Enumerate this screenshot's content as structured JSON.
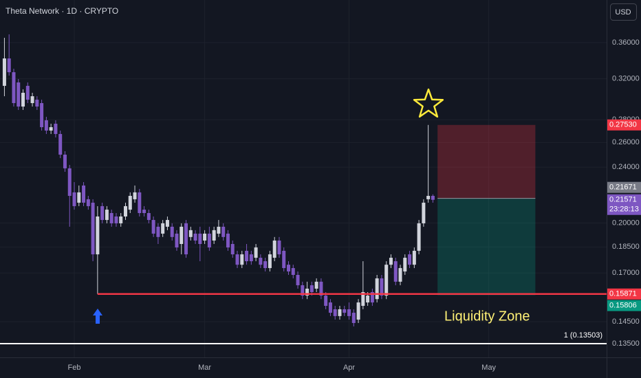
{
  "chart_data": {
    "type": "candlestick",
    "title": "Theta Network · 1D · CRYPTO",
    "currency": "USD",
    "log_scale": true,
    "grid": true,
    "up_color": "#d1d4dc",
    "down_color": "#7e57c2",
    "x": [
      0,
      1,
      2,
      3,
      4,
      5,
      6,
      7,
      8,
      9,
      10,
      11,
      12,
      13,
      14,
      15,
      16,
      17,
      18,
      19,
      20,
      21,
      22,
      23,
      24,
      25,
      26,
      27,
      28,
      29,
      30,
      31,
      32,
      33,
      34,
      35,
      36,
      37,
      38,
      39,
      40,
      41,
      42,
      43,
      44,
      45,
      46,
      47,
      48,
      49,
      50,
      51,
      52,
      53,
      54,
      55,
      56,
      57,
      58,
      59,
      60,
      61,
      62,
      63,
      64,
      65,
      66,
      67,
      68,
      69,
      70,
      71,
      72,
      73,
      74,
      75,
      76,
      77,
      78,
      79,
      80,
      81,
      82,
      83,
      84,
      85,
      86,
      87,
      88,
      89,
      90,
      91,
      92
    ],
    "open": [
      0.3127,
      0.3419,
      0.3269,
      0.3162,
      0.2923,
      0.3127,
      0.2956,
      0.2989,
      0.2956,
      0.2795,
      0.2703,
      0.2764,
      0.2673,
      0.2499,
      0.239,
      0.221,
      0.2137,
      0.226,
      0.2161,
      0.2137,
      0.1806,
      0.2113,
      0.202,
      0.2066,
      0.2043,
      0.1998,
      0.2043,
      0.2089,
      0.2161,
      0.221,
      0.2089,
      0.2066,
      0.202,
      0.1976,
      0.1932,
      0.1976,
      0.1976,
      0.1932,
      0.1868,
      0.1998,
      0.1911,
      0.1932,
      0.1932,
      0.1889,
      0.1932,
      0.1889,
      0.1932,
      0.1976,
      0.1932,
      0.1868,
      0.1806,
      0.1746,
      0.1827,
      0.1806,
      0.1786,
      0.1786,
      0.1766,
      0.1727,
      0.1786,
      0.1889,
      0.1827,
      0.1746,
      0.1727,
      0.1689,
      0.1633,
      0.1579,
      0.1633,
      0.1615,
      0.1652,
      0.1579,
      0.1544,
      0.151,
      0.1477,
      0.151,
      0.151,
      0.1493,
      0.146,
      0.1527,
      0.1544,
      0.1597,
      0.1561,
      0.167,
      0.1579,
      0.1746,
      0.1766,
      0.1652,
      0.1708,
      0.1806,
      0.1746,
      0.1827,
      0.1998,
      0.2161,
      0.2185
    ],
    "high": [
      0.3657,
      0.3698,
      0.3306,
      0.3197,
      0.3092,
      0.3162,
      0.3057,
      0.3023,
      0.2989,
      0.2827,
      0.2764,
      0.2795,
      0.2703,
      0.2527,
      0.2417,
      0.2285,
      0.226,
      0.2285,
      0.2185,
      0.2161,
      0.2113,
      0.2137,
      0.2113,
      0.2089,
      0.2066,
      0.2066,
      0.2137,
      0.221,
      0.226,
      0.2235,
      0.2113,
      0.2089,
      0.2043,
      0.1998,
      0.202,
      0.2043,
      0.1998,
      0.1954,
      0.1998,
      0.202,
      0.1976,
      0.1954,
      0.1976,
      0.1954,
      0.1976,
      0.1976,
      0.202,
      0.1998,
      0.1954,
      0.1889,
      0.1827,
      0.1827,
      0.1868,
      0.1827,
      0.1868,
      0.1806,
      0.1786,
      0.1827,
      0.1911,
      0.1911,
      0.1847,
      0.1766,
      0.1746,
      0.1708,
      0.1652,
      0.1652,
      0.1652,
      0.167,
      0.167,
      0.1597,
      0.1561,
      0.1527,
      0.1527,
      0.1527,
      0.1544,
      0.151,
      0.1561,
      0.1766,
      0.1597,
      0.1615,
      0.1689,
      0.1689,
      0.1766,
      0.1806,
      0.1786,
      0.1746,
      0.1806,
      0.1827,
      0.1847,
      0.202,
      0.2161,
      0.2753,
      0.2196
    ],
    "low": [
      0.3023,
      0.3233,
      0.2923,
      0.2891,
      0.2891,
      0.2956,
      0.2923,
      0.2891,
      0.2703,
      0.2673,
      0.2673,
      0.2643,
      0.2471,
      0.2363,
      0.1976,
      0.2089,
      0.2113,
      0.2113,
      0.2089,
      0.1766,
      0.1587,
      0.1998,
      0.1998,
      0.1976,
      0.1976,
      0.1976,
      0.202,
      0.2066,
      0.2137,
      0.2043,
      0.2043,
      0.1998,
      0.1911,
      0.1868,
      0.1911,
      0.1954,
      0.1889,
      0.1827,
      0.1806,
      0.1786,
      0.1889,
      0.1868,
      0.1766,
      0.1868,
      0.1827,
      0.1868,
      0.1911,
      0.1889,
      0.1827,
      0.1786,
      0.1727,
      0.1727,
      0.1746,
      0.1746,
      0.1766,
      0.1727,
      0.1708,
      0.1708,
      0.1766,
      0.1786,
      0.1708,
      0.1689,
      0.167,
      0.1615,
      0.1561,
      0.1561,
      0.1579,
      0.1597,
      0.1561,
      0.151,
      0.1477,
      0.146,
      0.146,
      0.1477,
      0.146,
      0.1428,
      0.1444,
      0.151,
      0.1527,
      0.1527,
      0.1544,
      0.1561,
      0.1561,
      0.1727,
      0.1633,
      0.1633,
      0.1689,
      0.1727,
      0.1727,
      0.1806,
      0.1976,
      0.2137,
      0.2137
    ],
    "close": [
      0.3419,
      0.3269,
      0.2956,
      0.2923,
      0.3057,
      0.2989,
      0.3023,
      0.2923,
      0.2733,
      0.2703,
      0.2733,
      0.2673,
      0.2499,
      0.239,
      0.2185,
      0.2113,
      0.221,
      0.2137,
      0.2113,
      0.1806,
      0.2043,
      0.202,
      0.2089,
      0.1998,
      0.1998,
      0.2043,
      0.2113,
      0.2185,
      0.221,
      0.2066,
      0.2066,
      0.202,
      0.1932,
      0.1911,
      0.1998,
      0.202,
      0.1911,
      0.1847,
      0.1976,
      0.1806,
      0.1954,
      0.1889,
      0.1868,
      0.1932,
      0.1847,
      0.1954,
      0.1976,
      0.1911,
      0.1847,
      0.1806,
      0.1746,
      0.1806,
      0.1766,
      0.1766,
      0.1847,
      0.1746,
      0.1727,
      0.1806,
      0.1889,
      0.1806,
      0.1727,
      0.1708,
      0.1689,
      0.1633,
      0.1579,
      0.1615,
      0.1597,
      0.1652,
      0.1579,
      0.1527,
      0.1493,
      0.1477,
      0.151,
      0.1493,
      0.1477,
      0.1444,
      0.1544,
      0.1597,
      0.1579,
      0.1544,
      0.167,
      0.1579,
      0.1746,
      0.1786,
      0.1652,
      0.1727,
      0.1786,
      0.1746,
      0.1827,
      0.1998,
      0.2137,
      0.2185,
      0.21571
    ],
    "xlim": [
      -0.95,
      129.3
    ],
    "xticks": [
      {
        "value": 15,
        "label": "Feb"
      },
      {
        "value": 43,
        "label": "Mar"
      },
      {
        "value": 74,
        "label": "Apr"
      },
      {
        "value": 104,
        "label": "May"
      }
    ],
    "ylim": [
      0.1291,
      0.4136
    ],
    "yticks": [
      {
        "value": 0.36,
        "label": "0.36000"
      },
      {
        "value": 0.32,
        "label": "0.32000"
      },
      {
        "value": 0.28,
        "label": "0.28000"
      },
      {
        "value": 0.26,
        "label": "0.26000"
      },
      {
        "value": 0.24,
        "label": "0.24000"
      },
      {
        "value": 0.2,
        "label": "0.20000"
      },
      {
        "value": 0.185,
        "label": "0.18500"
      },
      {
        "value": 0.17,
        "label": "0.17000"
      },
      {
        "value": 0.145,
        "label": "0.14500"
      },
      {
        "value": 0.135,
        "label": "0.13500"
      }
    ],
    "position": {
      "stop": {
        "value": 0.2753,
        "label": "0.27530"
      },
      "entry": {
        "value": 0.21671,
        "label": "0.21671"
      },
      "target": {
        "value": 0.15806,
        "label": "0.15806"
      },
      "x_start": 93,
      "x_end": 114
    },
    "support": {
      "value": 0.15871,
      "label": "0.15871",
      "x_start": 20,
      "color": "#f23645"
    },
    "last_price": {
      "value": 0.21571,
      "label": "0.21571",
      "countdown": "23:28:13"
    },
    "fib_line": {
      "value": 0.13503,
      "label": "1 (0.13503)"
    },
    "annotation": "Liquidity Zone"
  }
}
